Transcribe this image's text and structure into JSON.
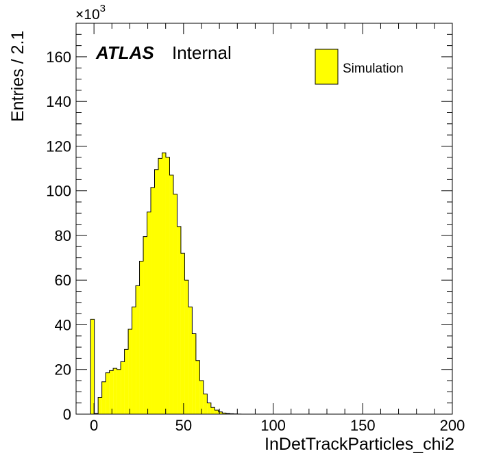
{
  "chart_data": {
    "type": "bar",
    "xlabel": "InDetTrackParticles_chi2",
    "ylabel": "Entries / 2.1",
    "y_multiplier_label": "×10",
    "y_multiplier_exponent": "3",
    "xlim": [
      -10,
      200
    ],
    "ylim": [
      0,
      175
    ],
    "x_ticks": [
      0,
      50,
      100,
      150,
      200
    ],
    "y_ticks": [
      0,
      20,
      40,
      60,
      80,
      100,
      120,
      140,
      160
    ],
    "grid": false,
    "legend_position": "top-right",
    "annotations": {
      "experiment": "ATLAS",
      "status": "Internal"
    },
    "bin_width": 2.1,
    "bin_start": -1.9,
    "series": [
      {
        "name": "Simulation",
        "color": "#ffff00",
        "values": [
          42.5,
          0.3,
          7.5,
          14.5,
          18.5,
          19.5,
          20.5,
          20.0,
          23.5,
          29.0,
          38.0,
          48.0,
          57.5,
          68.5,
          79.5,
          90.5,
          101.5,
          109.5,
          114.5,
          117.0,
          115.0,
          107.0,
          98.5,
          84.0,
          72.0,
          60.0,
          48.0,
          36.0,
          24.0,
          15.0,
          9.0,
          5.0,
          3.0,
          1.8,
          1.0,
          0.5,
          0.3,
          0.2,
          0.1,
          0.05
        ]
      }
    ]
  }
}
